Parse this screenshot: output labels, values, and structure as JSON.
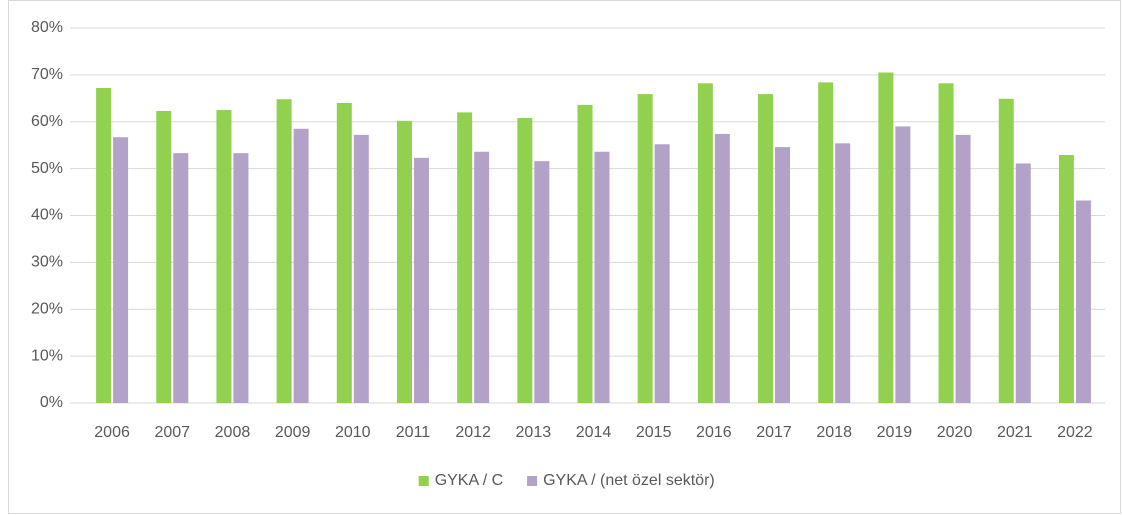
{
  "chart_data": {
    "type": "bar",
    "categories": [
      "2006",
      "2007",
      "2008",
      "2009",
      "2010",
      "2011",
      "2012",
      "2013",
      "2014",
      "2015",
      "2016",
      "2017",
      "2018",
      "2019",
      "2020",
      "2021",
      "2022"
    ],
    "series": [
      {
        "name": "GYKA / C",
        "color": "#92d050",
        "values": [
          67.2,
          62.3,
          62.5,
          64.8,
          64.0,
          60.2,
          62.0,
          60.8,
          63.6,
          65.9,
          68.2,
          65.9,
          68.4,
          70.5,
          68.2,
          64.9,
          52.9
        ]
      },
      {
        "name": "GYKA / (net özel sektör)",
        "color": "#b3a2c7",
        "values": [
          56.7,
          53.3,
          53.3,
          58.5,
          57.2,
          52.3,
          53.6,
          51.6,
          53.6,
          55.2,
          57.4,
          54.6,
          55.4,
          59.0,
          57.2,
          51.1,
          43.2
        ]
      }
    ],
    "ylim": [
      0,
      80
    ],
    "yticks": [
      {
        "value": 0,
        "label": "0%"
      },
      {
        "value": 10,
        "label": "10%"
      },
      {
        "value": 20,
        "label": "20%"
      },
      {
        "value": 30,
        "label": "30%"
      },
      {
        "value": 40,
        "label": "40%"
      },
      {
        "value": 50,
        "label": "50%"
      },
      {
        "value": 60,
        "label": "60%"
      },
      {
        "value": 70,
        "label": "70%"
      },
      {
        "value": 80,
        "label": "80%"
      }
    ],
    "grid": true,
    "legend": "bottom"
  }
}
